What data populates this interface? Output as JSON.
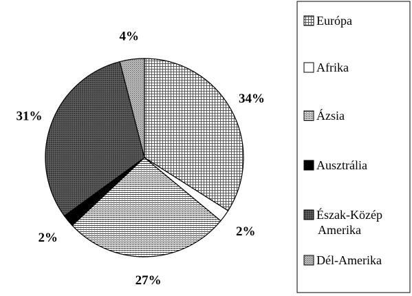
{
  "chart_data": {
    "type": "pie",
    "title": "",
    "slices": [
      {
        "label": "Európa",
        "legend_lines": [
          "Európa"
        ],
        "value": 34,
        "value_label": "34%",
        "pattern": "grid"
      },
      {
        "label": "Afrika",
        "legend_lines": [
          "Afrika"
        ],
        "value": 2,
        "value_label": "2%",
        "pattern": "white"
      },
      {
        "label": "Ázsia",
        "legend_lines": [
          "Ázsia"
        ],
        "value": 27,
        "value_label": "27%",
        "pattern": "hlines"
      },
      {
        "label": "Ausztrália",
        "legend_lines": [
          "Ausztrália"
        ],
        "value": 2,
        "value_label": "2%",
        "pattern": "black"
      },
      {
        "label": "Észak-Közép Amerika",
        "legend_lines": [
          "Észak-Közép",
          "Amerika"
        ],
        "value": 31,
        "value_label": "31%",
        "pattern": "darkgrid"
      },
      {
        "label": "Dél-Amerika",
        "legend_lines": [
          "Dél-Amerika"
        ],
        "value": 4,
        "value_label": "4%",
        "pattern": "dots"
      }
    ],
    "legend_position": "right"
  }
}
